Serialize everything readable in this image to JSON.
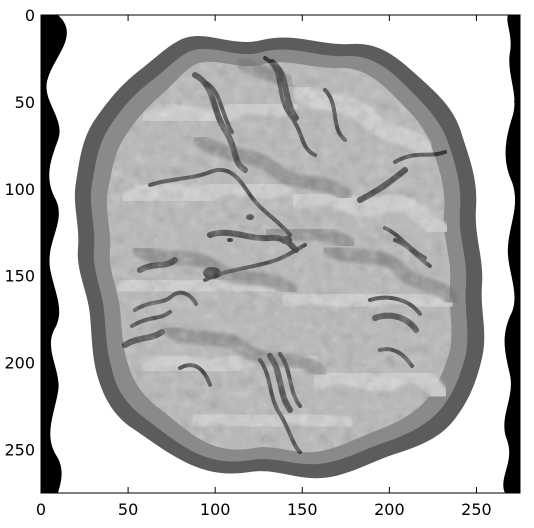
{
  "image": {
    "description_free": true,
    "colormap": "gray",
    "frame_color": "#000000",
    "background_color": "#ffffff",
    "colors": {
      "white_band": "#ffffff",
      "black_corner": "#000000",
      "outer_rim": "#5c5c5c",
      "inner_rim": "#8a8a8a",
      "marble_base": "#b8b8b8",
      "marble_light": "#d6d6d6",
      "marble_dark": "#7a7a7a",
      "vein_dark": "#2e2e2e"
    }
  },
  "axes": {
    "x": {
      "ticks": [
        0,
        50,
        100,
        150,
        200,
        250
      ],
      "labels": [
        "0",
        "50",
        "100",
        "150",
        "200",
        "250"
      ],
      "range": [
        0,
        275
      ]
    },
    "y": {
      "ticks": [
        0,
        50,
        100,
        150,
        200,
        250
      ],
      "labels": [
        "0",
        "50",
        "100",
        "150",
        "200",
        "250"
      ],
      "range": [
        0,
        275
      ]
    }
  }
}
